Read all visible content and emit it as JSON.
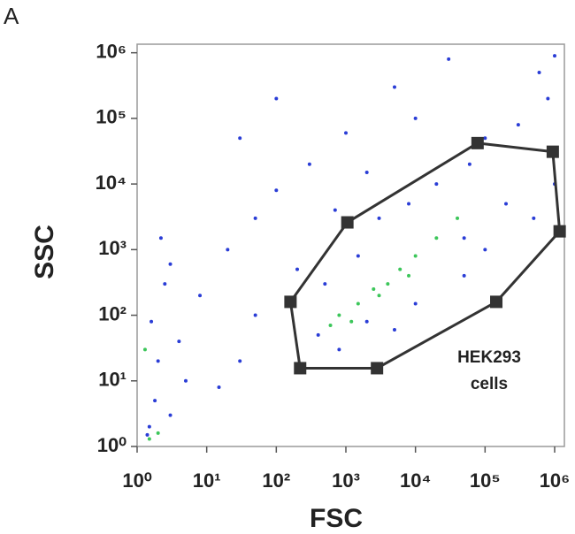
{
  "chart_data": {
    "type": "scatter",
    "panel": "A",
    "xlabel": "FSC",
    "ylabel": "SSC",
    "xscale": "log",
    "yscale": "log",
    "xlim": [
      1,
      1380000
    ],
    "ylim": [
      1,
      1350000
    ],
    "xticks": [
      {
        "value": 1,
        "label": "10⁰"
      },
      {
        "value": 10,
        "label": "10¹"
      },
      {
        "value": 100,
        "label": "10²"
      },
      {
        "value": 1000,
        "label": "10³"
      },
      {
        "value": 10000,
        "label": "10⁴"
      },
      {
        "value": 100000,
        "label": "10⁵"
      },
      {
        "value": 1000000,
        "label": "10⁶"
      }
    ],
    "yticks": [
      {
        "value": 1,
        "label": "10⁰"
      },
      {
        "value": 10,
        "label": "10¹"
      },
      {
        "value": 100,
        "label": "10²"
      },
      {
        "value": 1000,
        "label": "10³"
      },
      {
        "value": 10000,
        "label": "10⁴"
      },
      {
        "value": 100000,
        "label": "10⁵"
      },
      {
        "value": 1000000,
        "label": "10⁶"
      }
    ],
    "series": [
      {
        "color": "#2a3dd6",
        "x": [
          1.5,
          1.8,
          2,
          1.6,
          2.5,
          3,
          2.2,
          4,
          5,
          1.4,
          3,
          8,
          20,
          50,
          100,
          300,
          1000,
          5000,
          30000,
          200,
          500,
          1500,
          3000,
          8000,
          20000,
          60000,
          100000,
          300000,
          800000,
          1000000,
          400,
          800,
          2000,
          5000,
          10000,
          50000,
          100000,
          500000,
          1000000,
          50,
          30,
          15,
          700,
          2000,
          10000,
          100,
          30,
          600000,
          200000,
          50000
        ],
        "y": [
          2,
          5,
          20,
          80,
          300,
          600,
          1500,
          40,
          10,
          1.5,
          3,
          200,
          1000,
          3000,
          8000,
          20000,
          60000,
          300000,
          800000,
          500,
          300,
          800,
          3000,
          5000,
          10000,
          20000,
          50000,
          80000,
          200000,
          900000,
          50,
          30,
          80,
          60,
          150,
          400,
          1000,
          3000,
          10000,
          100,
          20,
          8,
          4000,
          15000,
          100000,
          200000,
          50000,
          500000,
          5000,
          1500
        ]
      },
      {
        "color": "#3cc65a",
        "x": [
          1.5,
          2,
          1.3,
          800,
          1500,
          2500,
          4000,
          6000,
          10000,
          20000,
          1200,
          3000,
          40000,
          8000,
          600
        ],
        "y": [
          1.3,
          1.6,
          30,
          100,
          150,
          250,
          300,
          500,
          800,
          1500,
          80,
          200,
          3000,
          400,
          70
        ]
      }
    ],
    "gate": {
      "color": "#333333",
      "x": [
        78000,
        940000,
        1180000,
        145000,
        2800,
        220,
        160,
        1050
      ],
      "y": [
        42000,
        31000,
        1900,
        160,
        15.6,
        15.6,
        160,
        2600
      ],
      "label": [
        "HEK293",
        "cells"
      ]
    }
  }
}
